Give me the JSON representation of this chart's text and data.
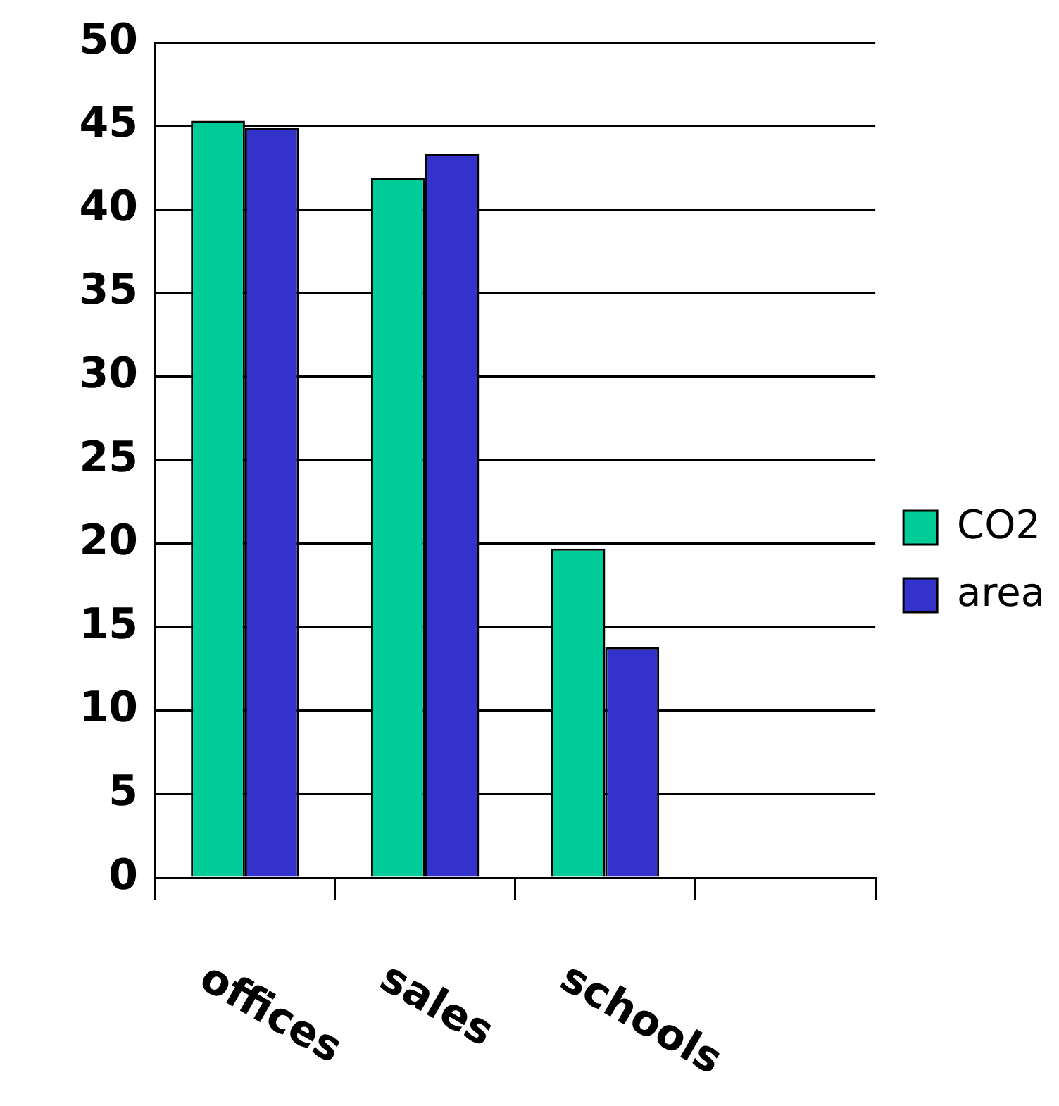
{
  "chart_data": {
    "type": "bar",
    "categories": [
      "offices",
      "sales",
      "schools",
      null
    ],
    "series": [
      {
        "name": "CO2",
        "color": "#00cc99",
        "values": [
          45.3,
          41.9,
          19.7,
          null
        ]
      },
      {
        "name": "area",
        "color": "#3333cc",
        "values": [
          44.9,
          43.3,
          13.8,
          null
        ]
      }
    ],
    "ylim": [
      0,
      50
    ],
    "yticks": [
      0,
      5,
      10,
      15,
      20,
      25,
      30,
      35,
      40,
      45,
      50
    ],
    "grid": "y",
    "legend": "right"
  }
}
